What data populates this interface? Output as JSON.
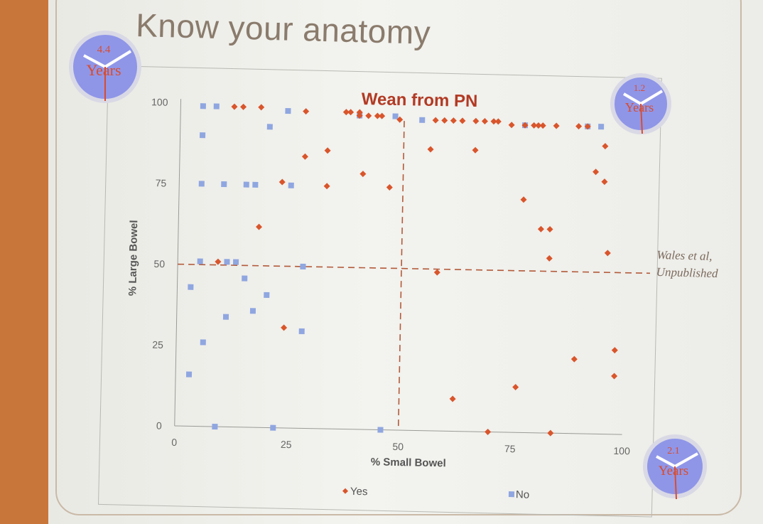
{
  "slide": {
    "title": "Know your anatomy",
    "citation_line1": "Wales et al,",
    "citation_line2": "Unpublished"
  },
  "clocks": [
    {
      "value": "4.4",
      "unit": "Years"
    },
    {
      "value": "1.2",
      "unit": "Years"
    },
    {
      "value": "2.1",
      "unit": "Years"
    }
  ],
  "colors": {
    "yes": "#d9552b",
    "no": "#8fa6e0",
    "clock_face": "#8f96e8",
    "guide": "#b25a3a"
  },
  "chart_data": {
    "type": "scatter",
    "title": "Wean from PN",
    "xlabel": "% Small Bowel",
    "ylabel": "% Large Bowel",
    "xlim": [
      0,
      100
    ],
    "ylim": [
      0,
      100
    ],
    "xticks": [
      0,
      25,
      50,
      75,
      100
    ],
    "yticks": [
      0,
      25,
      50,
      75,
      100
    ],
    "grid": false,
    "legend_position": "bottom",
    "reference_lines": {
      "x": 50,
      "y": 50
    },
    "series": [
      {
        "name": "Yes",
        "marker": "diamond",
        "points": [
          [
            12,
            99
          ],
          [
            14,
            99
          ],
          [
            18,
            99
          ],
          [
            28,
            98
          ],
          [
            37,
            98
          ],
          [
            38,
            98
          ],
          [
            40,
            98
          ],
          [
            42,
            97
          ],
          [
            44,
            97
          ],
          [
            45,
            97
          ],
          [
            49,
            96
          ],
          [
            57,
            96
          ],
          [
            59,
            96
          ],
          [
            61,
            96
          ],
          [
            63,
            96
          ],
          [
            66,
            96
          ],
          [
            68,
            96
          ],
          [
            70,
            96
          ],
          [
            71,
            96
          ],
          [
            74,
            95
          ],
          [
            77,
            95
          ],
          [
            79,
            95
          ],
          [
            80,
            95
          ],
          [
            81,
            95
          ],
          [
            84,
            95
          ],
          [
            89,
            95
          ],
          [
            91,
            95
          ],
          [
            40,
            97
          ],
          [
            95,
            89
          ],
          [
            93,
            81
          ],
          [
            95,
            78
          ],
          [
            33,
            86
          ],
          [
            56,
            87
          ],
          [
            66,
            87
          ],
          [
            28,
            84
          ],
          [
            41,
            79
          ],
          [
            47,
            75
          ],
          [
            23,
            76
          ],
          [
            33,
            75
          ],
          [
            18,
            62
          ],
          [
            77,
            72
          ],
          [
            81,
            63
          ],
          [
            83,
            63
          ],
          [
            83,
            54
          ],
          [
            96,
            56
          ],
          [
            9,
            51
          ],
          [
            58,
            49
          ],
          [
            24,
            31
          ],
          [
            62,
            10
          ],
          [
            76,
            14
          ],
          [
            89,
            23
          ],
          [
            98,
            26
          ],
          [
            98,
            18
          ],
          [
            70,
            0
          ],
          [
            84,
            0
          ]
        ]
      },
      {
        "name": "No",
        "marker": "square",
        "points": [
          [
            5,
            99
          ],
          [
            8,
            99
          ],
          [
            24,
            98
          ],
          [
            20,
            93
          ],
          [
            5,
            90
          ],
          [
            5,
            75
          ],
          [
            10,
            75
          ],
          [
            15,
            75
          ],
          [
            17,
            75
          ],
          [
            25,
            75
          ],
          [
            5,
            51
          ],
          [
            11,
            51
          ],
          [
            13,
            51
          ],
          [
            28,
            50
          ],
          [
            3,
            43
          ],
          [
            15,
            46
          ],
          [
            20,
            41
          ],
          [
            17,
            36
          ],
          [
            11,
            34
          ],
          [
            28,
            30
          ],
          [
            6,
            26
          ],
          [
            3,
            16
          ],
          [
            9,
            0
          ],
          [
            22,
            0
          ],
          [
            46,
            0
          ],
          [
            40,
            97
          ],
          [
            48,
            97
          ],
          [
            54,
            96
          ],
          [
            77,
            95
          ],
          [
            91,
            95
          ],
          [
            94,
            95
          ]
        ]
      }
    ]
  }
}
